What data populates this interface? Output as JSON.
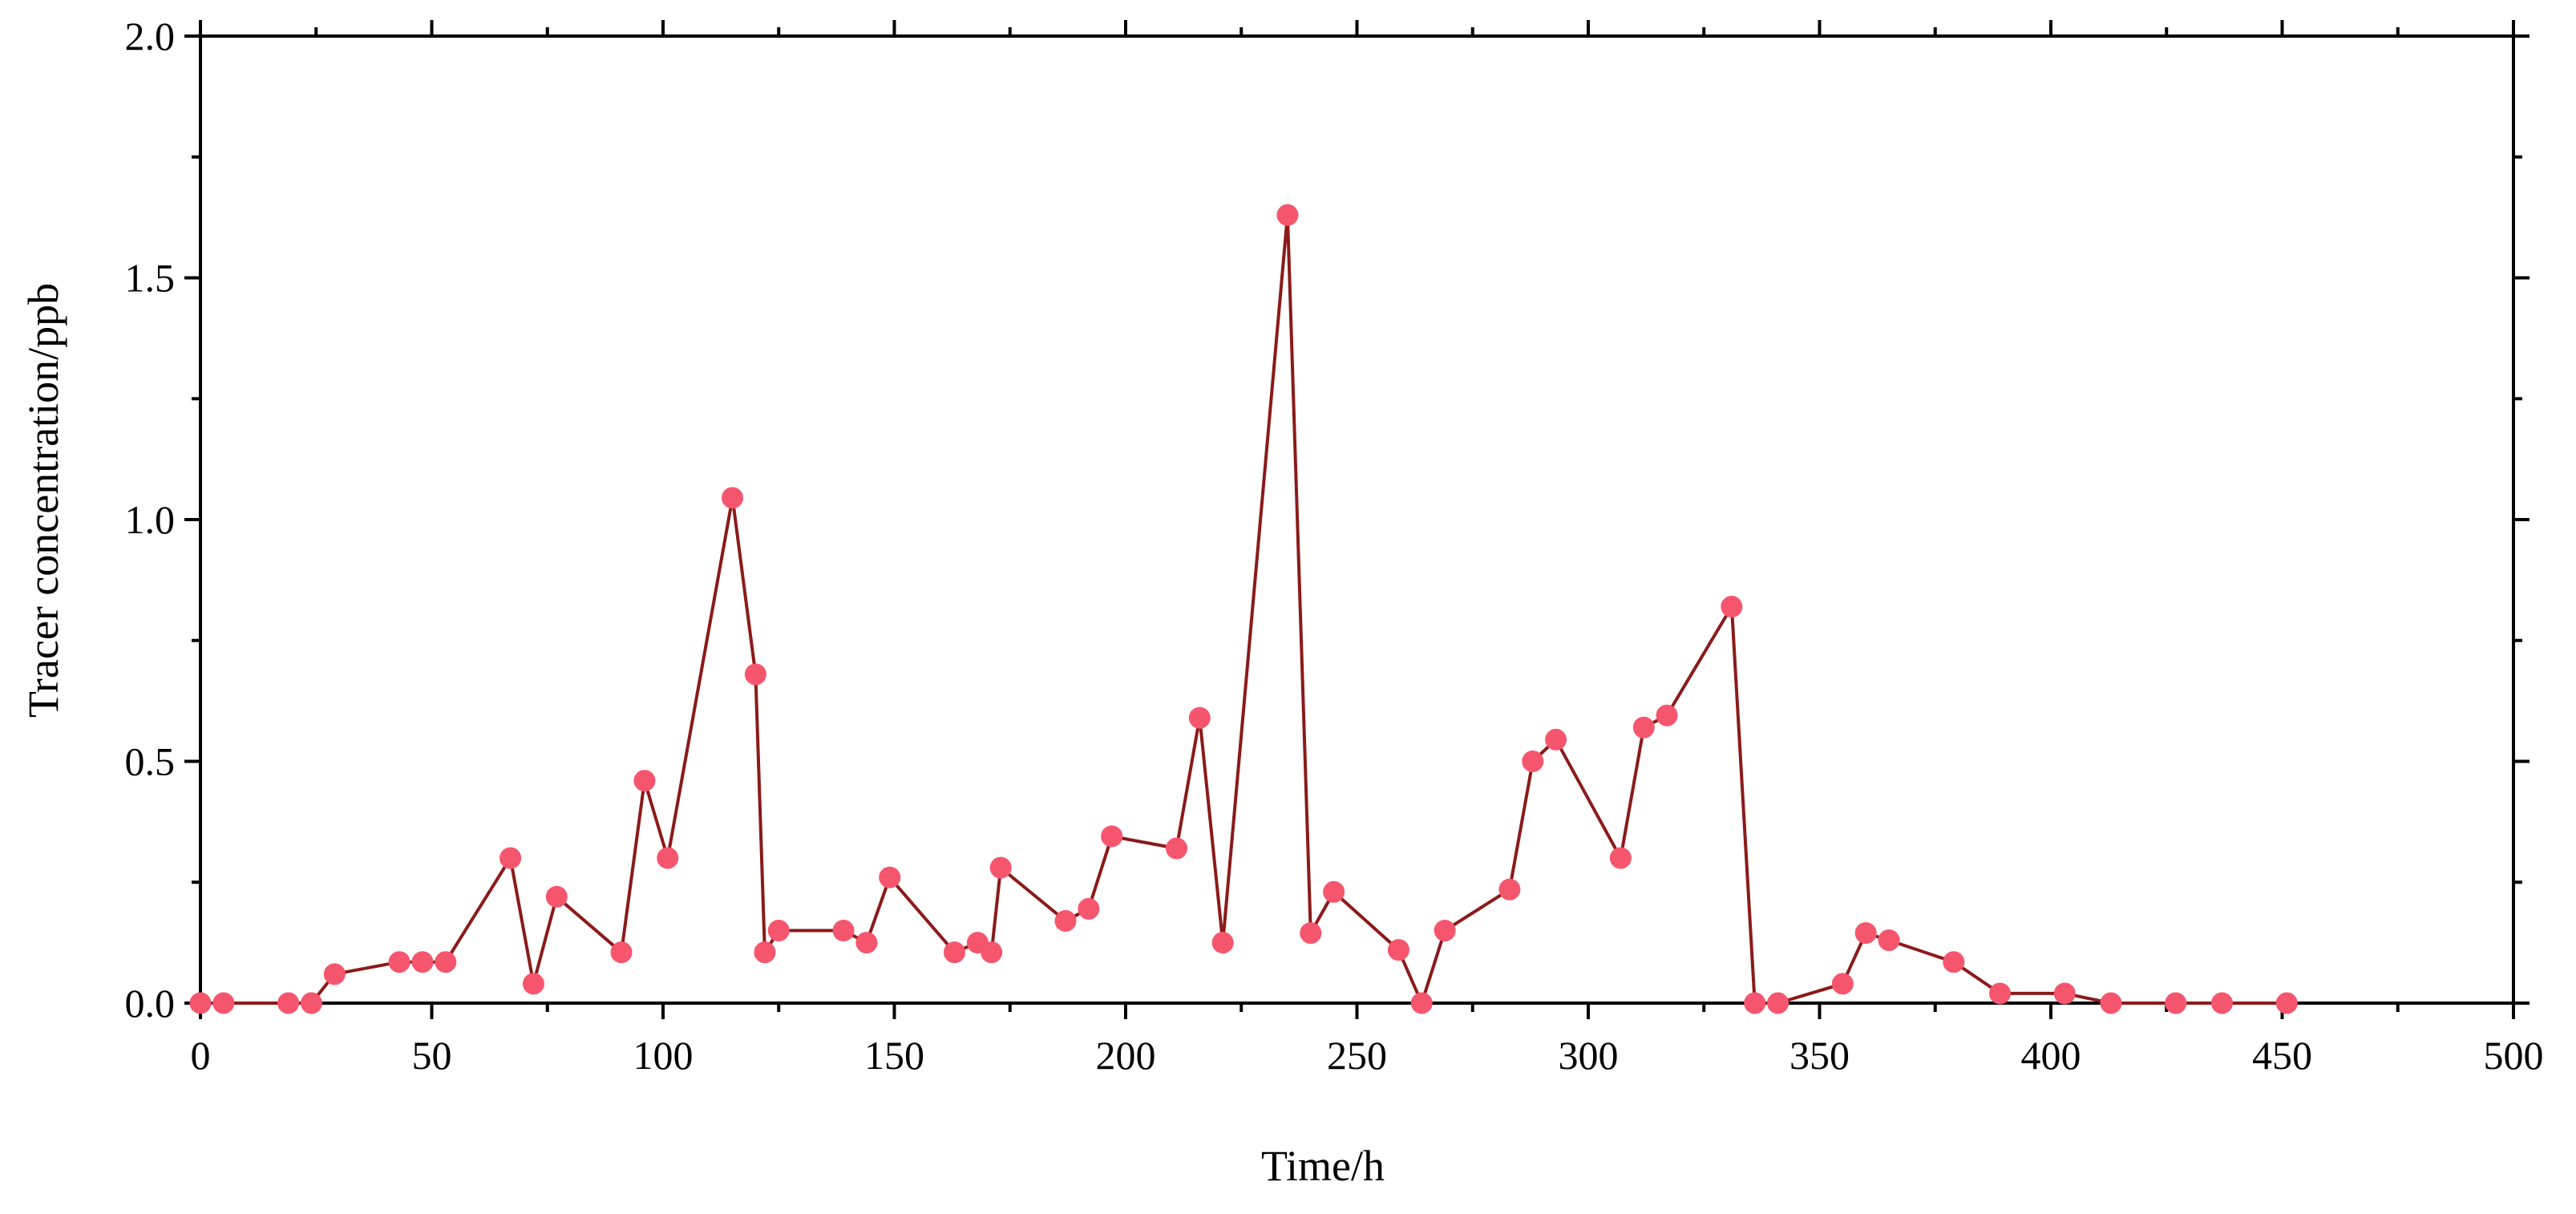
{
  "chart_data": {
    "type": "line",
    "title": "",
    "xlabel": "Time/h",
    "ylabel": "Tracer concentration/ppb",
    "xlim": [
      0,
      500
    ],
    "ylim": [
      0,
      2.0
    ],
    "x_ticks": [
      0,
      50,
      100,
      150,
      200,
      250,
      300,
      350,
      400,
      450,
      500
    ],
    "x_tick_labels": [
      "0",
      "50",
      "100",
      "150",
      "200",
      "250",
      "300",
      "350",
      "400",
      "450",
      "500"
    ],
    "y_ticks": [
      0,
      0.5,
      1.0,
      1.5,
      2.0
    ],
    "y_tick_labels": [
      "0.0",
      "0.5",
      "1.0",
      "1.5",
      "2.0"
    ],
    "grid": false,
    "legend": "none",
    "colors": {
      "line": "#8b1a1a",
      "marker": "#f5566e",
      "axis": "#000000"
    },
    "series": [
      {
        "x": [
          0,
          5,
          19,
          24,
          29,
          43,
          48,
          53,
          67,
          72,
          77,
          91,
          96,
          101,
          115,
          120,
          122,
          125,
          139,
          144,
          149,
          163,
          168,
          171,
          173,
          187,
          192,
          197,
          211,
          216,
          221,
          235,
          240,
          245,
          259,
          264,
          269,
          283,
          288,
          293,
          307,
          312,
          317,
          331,
          336,
          341,
          355,
          360,
          365,
          379,
          389,
          403,
          413,
          427,
          437,
          451
        ],
        "y": [
          0,
          0,
          0,
          0,
          0.06,
          0.085,
          0.085,
          0.085,
          0.3,
          0.04,
          0.22,
          0.105,
          0.46,
          0.3,
          1.045,
          0.68,
          0.105,
          0.15,
          0.15,
          0.125,
          0.26,
          0.105,
          0.125,
          0.105,
          0.28,
          0.17,
          0.195,
          0.345,
          0.32,
          0.59,
          0.125,
          1.63,
          0.145,
          0.23,
          0.11,
          0,
          0.15,
          0.235,
          0.5,
          0.545,
          0.3,
          0.57,
          0.595,
          0.82,
          0,
          0,
          0.04,
          0.145,
          0.13,
          0.085,
          0.02,
          0.02,
          0,
          0,
          0,
          0
        ]
      }
    ]
  }
}
